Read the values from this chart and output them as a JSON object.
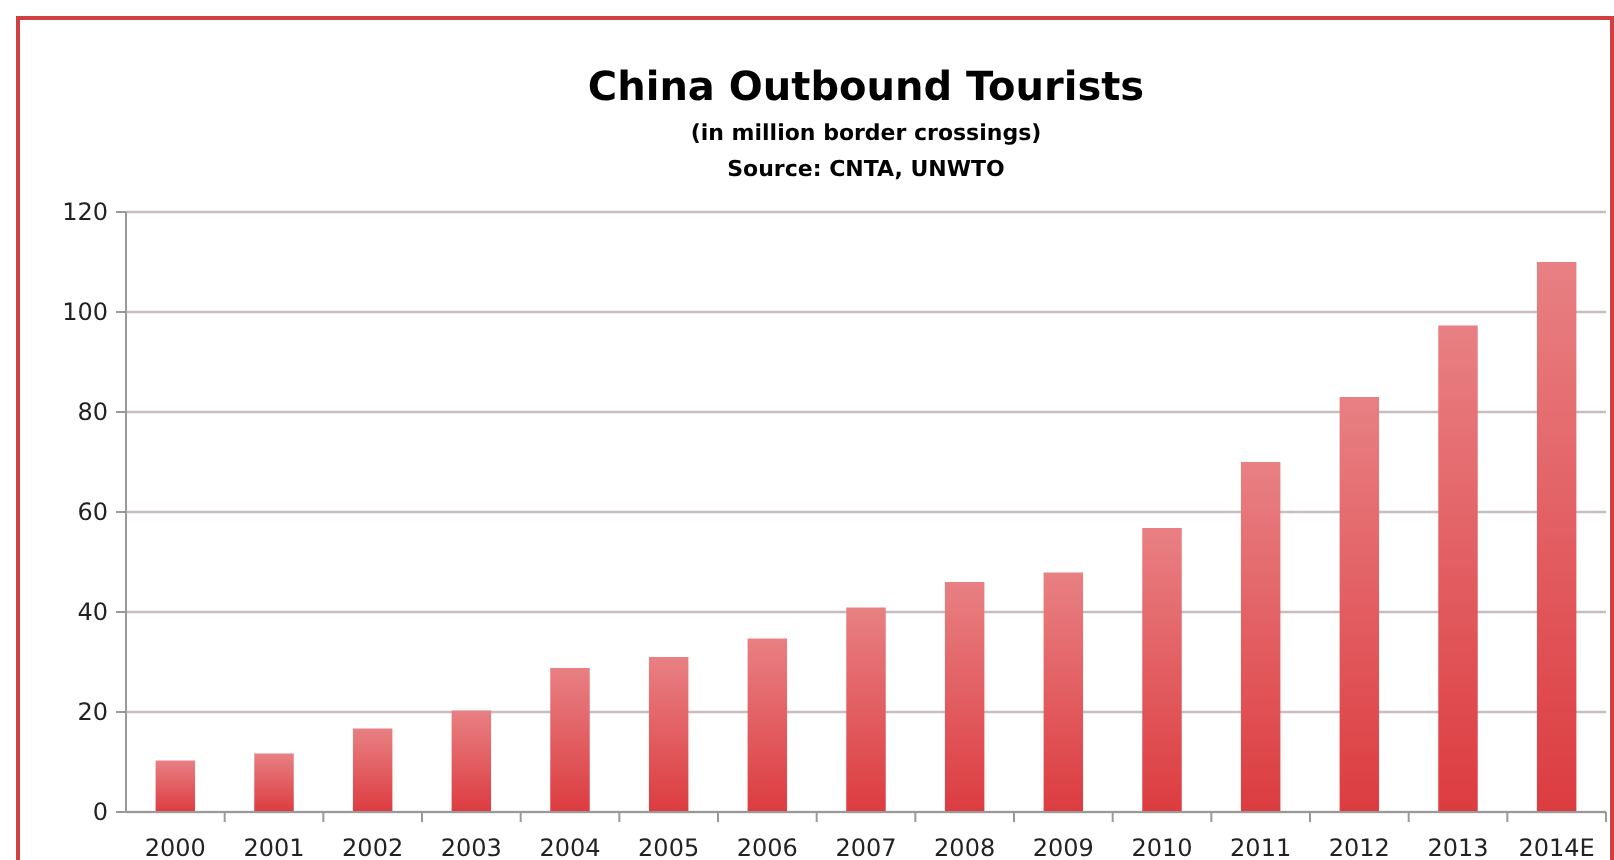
{
  "chart_data": {
    "type": "bar",
    "title": "China Outbound Tourists",
    "subtitle": "(in million border crossings)",
    "annotations": [
      "Source: CNTA, UNWTO"
    ],
    "categories": [
      "2000",
      "2001",
      "2002",
      "2003",
      "2004",
      "2005",
      "2006",
      "2007",
      "2008",
      "2009",
      "2010",
      "2011",
      "2012",
      "2013",
      "2014E"
    ],
    "values": [
      10.3,
      11.7,
      16.7,
      20.3,
      28.8,
      31,
      34.7,
      40.9,
      46,
      47.9,
      56.8,
      70,
      83,
      97.3,
      110
    ],
    "color": "#dc3c40",
    "ylim": [
      0,
      120
    ],
    "yticks": [
      0,
      20,
      40,
      60,
      80,
      100,
      120
    ],
    "grid": "y"
  }
}
